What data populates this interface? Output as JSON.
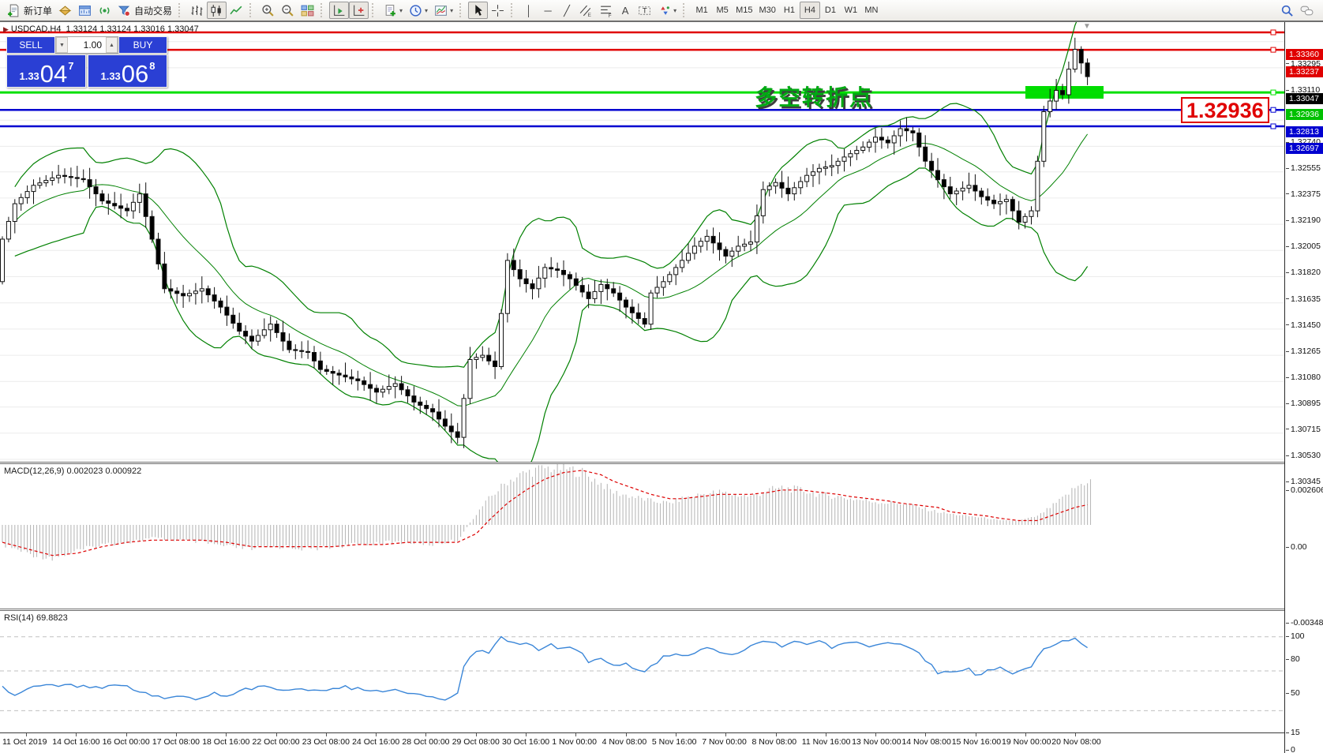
{
  "toolbar": {
    "groups": [
      {
        "name": "orders-group",
        "items": [
          {
            "name": "new-order-button",
            "icon": "neworder",
            "label": "新订单"
          },
          {
            "name": "marketwatch-button",
            "icon": "market"
          },
          {
            "name": "data-window-button",
            "icon": "window"
          },
          {
            "name": "navigator-button",
            "icon": "signal"
          },
          {
            "name": "autotrading-button",
            "icon": "autotrade",
            "label": "自动交易"
          }
        ]
      },
      {
        "name": "chart-type-group",
        "items": [
          {
            "name": "bar-chart-button",
            "icon": "bars"
          },
          {
            "name": "candlestick-button",
            "icon": "candles",
            "active": true
          },
          {
            "name": "line-chart-button",
            "icon": "linechart"
          }
        ]
      },
      {
        "name": "zoom-group",
        "items": [
          {
            "name": "zoom-in-button",
            "icon": "zoomin"
          },
          {
            "name": "zoom-out-button",
            "icon": "zoomout"
          },
          {
            "name": "tile-windows-button",
            "icon": "tiles"
          }
        ]
      },
      {
        "name": "scroll-group",
        "items": [
          {
            "name": "auto-scroll-button",
            "icon": "autoscroll",
            "active": true
          },
          {
            "name": "chart-shift-button",
            "icon": "shift",
            "active": true
          }
        ]
      },
      {
        "name": "insert-group",
        "items": [
          {
            "name": "indicators-button",
            "icon": "indicator",
            "caret": true
          },
          {
            "name": "periods-button",
            "icon": "clock",
            "caret": true
          },
          {
            "name": "templates-button",
            "icon": "template",
            "caret": true
          }
        ]
      },
      {
        "name": "cursor-group",
        "items": [
          {
            "name": "cursor-button",
            "icon": "cursor",
            "active": true
          },
          {
            "name": "crosshair-button",
            "icon": "crosshair"
          }
        ]
      },
      {
        "name": "draw-group",
        "items": [
          {
            "name": "vertical-line-button",
            "glyph": "│"
          },
          {
            "name": "horizontal-line-button",
            "glyph": "─"
          },
          {
            "name": "trendline-button",
            "glyph": "╱"
          },
          {
            "name": "channel-button",
            "icon": "channel"
          },
          {
            "name": "fibonacci-button",
            "icon": "fib"
          },
          {
            "name": "text-button",
            "glyph": "A"
          },
          {
            "name": "text-label-button",
            "icon": "labelbox"
          },
          {
            "name": "arrows-button",
            "icon": "arrows",
            "caret": true
          }
        ]
      },
      {
        "name": "timeframes-group",
        "items": [
          {
            "name": "timeframe-m1",
            "tf": "M1"
          },
          {
            "name": "timeframe-m5",
            "tf": "M5"
          },
          {
            "name": "timeframe-m15",
            "tf": "M15"
          },
          {
            "name": "timeframe-m30",
            "tf": "M30"
          },
          {
            "name": "timeframe-h1",
            "tf": "H1"
          },
          {
            "name": "timeframe-h4",
            "tf": "H4",
            "active": true
          },
          {
            "name": "timeframe-d1",
            "tf": "D1"
          },
          {
            "name": "timeframe-w1",
            "tf": "W1"
          },
          {
            "name": "timeframe-mn",
            "tf": "MN"
          }
        ]
      }
    ],
    "right_items": [
      {
        "name": "search-button",
        "icon": "search"
      },
      {
        "name": "chat-button",
        "icon": "chat"
      }
    ]
  },
  "chart": {
    "title": {
      "symbol": "USDCAD,H4",
      "ohlc": "1.33124 1.33124 1.33016 1.33047"
    },
    "trade_panel": {
      "sell_label": "SELL",
      "buy_label": "BUY",
      "volume": "1.00",
      "sell_price": {
        "small": "1.33",
        "big": "04",
        "sup": "7"
      },
      "buy_price": {
        "small": "1.33",
        "big": "06",
        "sup": "8"
      }
    },
    "annotation_text": "多空转折点",
    "price_callout": "1.32936",
    "y_ticks": [
      "1.33295",
      "1.33110",
      "1.32740",
      "1.32555",
      "1.32375",
      "1.32190",
      "1.32005",
      "1.31820",
      "1.31635",
      "1.31450",
      "1.31265",
      "1.31080",
      "1.30895",
      "1.30715",
      "1.30530",
      "1.30345"
    ],
    "price_tags": [
      {
        "text": "1.33360",
        "bg": "#e00000"
      },
      {
        "text": "1.33237",
        "bg": "#e00000"
      },
      {
        "text": "1.33047",
        "bg": "#000000"
      },
      {
        "text": "1.32936",
        "bg": "#00c000"
      },
      {
        "text": "1.32813",
        "bg": "#0000d0"
      },
      {
        "text": "1.32697",
        "bg": "#0000d0"
      }
    ],
    "macd_ticks": [
      "0.002606",
      "0.00",
      "-0.003481"
    ],
    "rsi_ticks": [
      "100",
      "80",
      "50",
      "15",
      "0"
    ],
    "x_labels": [
      "11 Oct 2019",
      "14 Oct 16:00",
      "16 Oct 00:00",
      "17 Oct 08:00",
      "18 Oct 16:00",
      "22 Oct 00:00",
      "23 Oct 08:00",
      "24 Oct 16:00",
      "28 Oct 00:00",
      "29 Oct 08:00",
      "30 Oct 16:00",
      "1 Nov 00:00",
      "4 Nov 08:00",
      "5 Nov 16:00",
      "7 Nov 00:00",
      "8 Nov 08:00",
      "11 Nov 16:00",
      "13 Nov 00:00",
      "14 Nov 08:00",
      "15 Nov 16:00",
      "19 Nov 00:00",
      "20 Nov 08:00"
    ]
  },
  "indicators": {
    "macd_label": "MACD(12,26,9) 0.002023 0.000922",
    "rsi_label": "RSI(14) 69.8823"
  },
  "chart_data": {
    "type": "candlestick",
    "symbol": "USDCAD",
    "timeframe": "H4",
    "x_range": [
      "11 Oct 2019",
      "20 Nov 2019 16:00"
    ],
    "y_range": [
      1.30345,
      1.33432
    ],
    "last_ohlc": {
      "open": 1.33124,
      "high": 1.33124,
      "low": 1.33016,
      "close": 1.33047
    },
    "colors": {
      "bull": "#ffffff",
      "bear": "#000000",
      "band": "#008000",
      "resistance": "#e00000",
      "support": "#0000d0",
      "pivot": "#00e000",
      "macd_hist": "#b9b9b9",
      "macd_signal": "#dd0000",
      "rsi_line": "#3a86d8"
    },
    "price_keypoints": [
      [
        0,
        1.319
      ],
      [
        2,
        1.3215
      ],
      [
        5,
        1.3228
      ],
      [
        9,
        1.3235
      ],
      [
        13,
        1.3232
      ],
      [
        16,
        1.3217
      ],
      [
        20,
        1.321
      ],
      [
        22,
        1.3222
      ],
      [
        24,
        1.319
      ],
      [
        26,
        1.3155
      ],
      [
        29,
        1.315
      ],
      [
        32,
        1.3155
      ],
      [
        35,
        1.3142
      ],
      [
        38,
        1.3125
      ],
      [
        40,
        1.3118
      ],
      [
        43,
        1.313
      ],
      [
        46,
        1.3112
      ],
      [
        49,
        1.311
      ],
      [
        51,
        1.3098
      ],
      [
        54,
        1.3094
      ],
      [
        57,
        1.309
      ],
      [
        60,
        1.3082
      ],
      [
        63,
        1.3088
      ],
      [
        66,
        1.3075
      ],
      [
        69,
        1.3068
      ],
      [
        71,
        1.3058
      ],
      [
        73,
        1.305
      ],
      [
        75,
        1.3105
      ],
      [
        77,
        1.3108
      ],
      [
        79,
        1.31
      ],
      [
        81,
        1.3175
      ],
      [
        83,
        1.3162
      ],
      [
        85,
        1.3155
      ],
      [
        87,
        1.317
      ],
      [
        89,
        1.3168
      ],
      [
        91,
        1.3162
      ],
      [
        94,
        1.3148
      ],
      [
        96,
        1.3158
      ],
      [
        98,
        1.3152
      ],
      [
        100,
        1.3142
      ],
      [
        103,
        1.313
      ],
      [
        104,
        1.3152
      ],
      [
        106,
        1.316
      ],
      [
        109,
        1.3175
      ],
      [
        111,
        1.3185
      ],
      [
        113,
        1.3192
      ],
      [
        116,
        1.3178
      ],
      [
        118,
        1.3185
      ],
      [
        120,
        1.3188
      ],
      [
        122,
        1.3225
      ],
      [
        124,
        1.323
      ],
      [
        126,
        1.3222
      ],
      [
        129,
        1.3235
      ],
      [
        131,
        1.324
      ],
      [
        133,
        1.3242
      ],
      [
        135,
        1.3248
      ],
      [
        138,
        1.3255
      ],
      [
        140,
        1.3262
      ],
      [
        142,
        1.3258
      ],
      [
        144,
        1.3268
      ],
      [
        146,
        1.3265
      ],
      [
        148,
        1.3245
      ],
      [
        150,
        1.3232
      ],
      [
        152,
        1.3222
      ],
      [
        155,
        1.3228
      ],
      [
        157,
        1.322
      ],
      [
        159,
        1.3215
      ],
      [
        161,
        1.3218
      ],
      [
        163,
        1.3202
      ],
      [
        165,
        1.321
      ],
      [
        167,
        1.328
      ],
      [
        169,
        1.3295
      ],
      [
        170,
        1.3292
      ],
      [
        171,
        1.331
      ],
      [
        172,
        1.3324
      ],
      [
        174,
        1.33047
      ]
    ],
    "overlays": {
      "bollinger": {
        "period": 14,
        "deviation": 2
      }
    },
    "horizontal_lines": [
      {
        "name": "resistance-line-1",
        "price": 1.3336,
        "color": "#e00000",
        "width": 2.5
      },
      {
        "name": "resistance-line-2",
        "price": 1.33237,
        "color": "#e00000",
        "width": 2.5
      },
      {
        "name": "pivot-line",
        "price": 1.32936,
        "color": "#00e000",
        "width": 3
      },
      {
        "name": "support-line-1",
        "price": 1.32813,
        "color": "#0000d0",
        "width": 2.5
      },
      {
        "name": "support-line-2",
        "price": 1.32697,
        "color": "#0000d0",
        "width": 2.5
      }
    ],
    "highlight_box": {
      "from_idx": 164,
      "to_idx": 176.5,
      "price": 1.32936,
      "color": "#00dd00"
    },
    "current_price": 1.33047,
    "macd": {
      "params": "12,26,9",
      "current_macd": 0.002023,
      "current_signal": 0.000922,
      "axis": {
        "top": 0.002606,
        "zero": 0.0,
        "bottom": -0.003481
      },
      "keypoints": [
        [
          0,
          -0.0009,
          -0.0008
        ],
        [
          4,
          -0.0013,
          -0.0011
        ],
        [
          8,
          -0.0015,
          -0.0014
        ],
        [
          12,
          -0.0012,
          -0.0013
        ],
        [
          16,
          -0.0009,
          -0.001
        ],
        [
          20,
          -0.0008,
          -0.0008
        ],
        [
          24,
          -0.0006,
          -0.0007
        ],
        [
          28,
          -0.0007,
          -0.0007
        ],
        [
          32,
          -0.0008,
          -0.0007
        ],
        [
          36,
          -0.001,
          -0.0008
        ],
        [
          40,
          -0.0011,
          -0.001
        ],
        [
          45,
          -0.001,
          -0.001
        ],
        [
          49,
          -0.0011,
          -0.001
        ],
        [
          53,
          -0.001,
          -0.001
        ],
        [
          57,
          -0.0009,
          -0.0009
        ],
        [
          61,
          -0.0008,
          -0.0009
        ],
        [
          65,
          -0.0008,
          -0.0008
        ],
        [
          69,
          -0.0009,
          -0.0008
        ],
        [
          73,
          -0.0007,
          -0.0008
        ],
        [
          76,
          0.0005,
          -0.0004
        ],
        [
          78,
          0.0012,
          0.0002
        ],
        [
          81,
          0.002,
          0.001
        ],
        [
          84,
          0.0024,
          0.0016
        ],
        [
          87,
          0.0026,
          0.0021
        ],
        [
          90,
          0.0026,
          0.0024
        ],
        [
          93,
          0.0024,
          0.0025
        ],
        [
          96,
          0.0019,
          0.0023
        ],
        [
          98,
          0.0015,
          0.002
        ],
        [
          101,
          0.0013,
          0.0017
        ],
        [
          104,
          0.0011,
          0.0014
        ],
        [
          107,
          0.001,
          0.0012
        ],
        [
          109,
          0.0012,
          0.0012
        ],
        [
          112,
          0.0014,
          0.0013
        ],
        [
          115,
          0.0015,
          0.0014
        ],
        [
          117,
          0.0014,
          0.0014
        ],
        [
          120,
          0.0013,
          0.0014
        ],
        [
          123,
          0.0016,
          0.0015
        ],
        [
          125,
          0.0017,
          0.0016
        ],
        [
          128,
          0.0016,
          0.0016
        ],
        [
          131,
          0.0014,
          0.0015
        ],
        [
          134,
          0.0013,
          0.0014
        ],
        [
          136,
          0.0012,
          0.0013
        ],
        [
          139,
          0.0011,
          0.0012
        ],
        [
          142,
          0.001,
          0.0011
        ],
        [
          144,
          0.001,
          0.001
        ],
        [
          147,
          0.0008,
          0.0009
        ],
        [
          150,
          0.0006,
          0.0008
        ],
        [
          152,
          0.0005,
          0.0006
        ],
        [
          155,
          0.0004,
          0.0005
        ],
        [
          158,
          0.0003,
          0.0004
        ],
        [
          160,
          0.0002,
          0.0003
        ],
        [
          163,
          0.0002,
          0.0002
        ],
        [
          166,
          0.0004,
          0.0002
        ],
        [
          168,
          0.0008,
          0.0004
        ],
        [
          170,
          0.0012,
          0.0006
        ],
        [
          172,
          0.0017,
          0.0008
        ],
        [
          174,
          0.002023,
          0.000922
        ]
      ]
    },
    "rsi": {
      "period": 14,
      "current": 69.8823,
      "levels": [
        80,
        50,
        15
      ],
      "range": [
        0,
        100
      ],
      "keypoints": [
        [
          0,
          38
        ],
        [
          2,
          27
        ],
        [
          5,
          36
        ],
        [
          8,
          38
        ],
        [
          11,
          37
        ],
        [
          15,
          35
        ],
        [
          18,
          38
        ],
        [
          20,
          36
        ],
        [
          23,
          30
        ],
        [
          26,
          26
        ],
        [
          28,
          28
        ],
        [
          31,
          25
        ],
        [
          34,
          30
        ],
        [
          36,
          27
        ],
        [
          39,
          34
        ],
        [
          42,
          37
        ],
        [
          45,
          33
        ],
        [
          47,
          35
        ],
        [
          50,
          32
        ],
        [
          53,
          34
        ],
        [
          55,
          36
        ],
        [
          58,
          33
        ],
        [
          61,
          31
        ],
        [
          63,
          34
        ],
        [
          66,
          30
        ],
        [
          69,
          28
        ],
        [
          71,
          25
        ],
        [
          73,
          30
        ],
        [
          74,
          55
        ],
        [
          76,
          68
        ],
        [
          78,
          67
        ],
        [
          80,
          80
        ],
        [
          81,
          76
        ],
        [
          83,
          72
        ],
        [
          84,
          74
        ],
        [
          86,
          68
        ],
        [
          88,
          73
        ],
        [
          89,
          70
        ],
        [
          91,
          72
        ],
        [
          93,
          65
        ],
        [
          94,
          58
        ],
        [
          96,
          62
        ],
        [
          98,
          55
        ],
        [
          100,
          57
        ],
        [
          101,
          52
        ],
        [
          103,
          48
        ],
        [
          105,
          58
        ],
        [
          106,
          62
        ],
        [
          108,
          65
        ],
        [
          110,
          63
        ],
        [
          112,
          68
        ],
        [
          114,
          70
        ],
        [
          116,
          64
        ],
        [
          118,
          66
        ],
        [
          119,
          68
        ],
        [
          121,
          74
        ],
        [
          123,
          76
        ],
        [
          125,
          72
        ],
        [
          127,
          75
        ],
        [
          129,
          73
        ],
        [
          131,
          76
        ],
        [
          133,
          70
        ],
        [
          135,
          73
        ],
        [
          137,
          75
        ],
        [
          139,
          71
        ],
        [
          141,
          73
        ],
        [
          143,
          74
        ],
        [
          145,
          72
        ],
        [
          147,
          65
        ],
        [
          149,
          55
        ],
        [
          150,
          48
        ],
        [
          152,
          50
        ],
        [
          155,
          52
        ],
        [
          156,
          45
        ],
        [
          158,
          50
        ],
        [
          160,
          52
        ],
        [
          162,
          48
        ],
        [
          165,
          55
        ],
        [
          167,
          70
        ],
        [
          169,
          74
        ],
        [
          170,
          76
        ],
        [
          172,
          78
        ],
        [
          173,
          74
        ],
        [
          174,
          70
        ]
      ]
    }
  }
}
